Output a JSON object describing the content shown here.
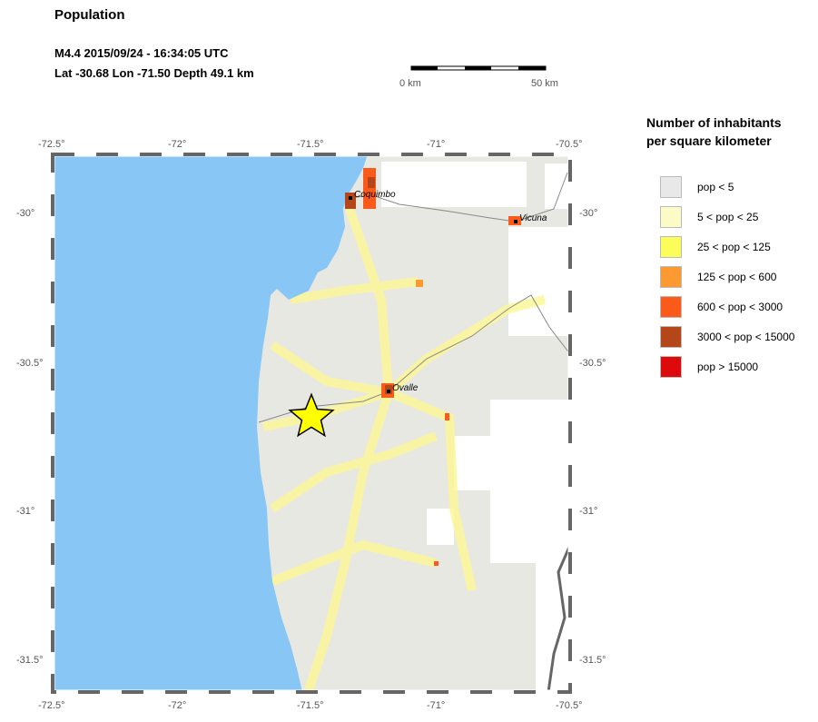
{
  "header": {
    "title": "Population",
    "event_line": "M4.4  2015/09/24 - 16:34:05 UTC",
    "location_line": "Lat -30.68    Lon -71.50     Depth  49.1 km"
  },
  "scale_bar": {
    "start_label": "0 km",
    "end_label": "50 km"
  },
  "map": {
    "lon_ticks": [
      "-72.5°",
      "-72°",
      "-71.5°",
      "-71°",
      "-70.5°"
    ],
    "lat_ticks": [
      "-30°",
      "-30.5°",
      "-31°",
      "-31.5°"
    ],
    "extent": {
      "lon": [
        -72.5,
        -70.5
      ],
      "lat": [
        -31.6,
        -29.8
      ]
    },
    "epicenter": {
      "lat": -30.68,
      "lon": -71.5,
      "marker": "star-icon",
      "color": "#ffff00"
    },
    "cities": [
      {
        "name": "Coquimbo"
      },
      {
        "name": "Vicuna"
      },
      {
        "name": "Ovalle"
      }
    ],
    "colors": {
      "sea": "#87c6f5",
      "land": "#e8e8e2"
    }
  },
  "legend": {
    "title_line1": "Number of inhabitants",
    "title_line2": "per square kilometer",
    "items": [
      {
        "label": "pop < 5",
        "color": "#e8e8e8"
      },
      {
        "label": "5 < pop < 25",
        "color": "#fcfbc8"
      },
      {
        "label": "25 < pop < 125",
        "color": "#fcfc5a"
      },
      {
        "label": "125 < pop < 600",
        "color": "#fc9a32"
      },
      {
        "label": "600 < pop < 3000",
        "color": "#fc5a1a"
      },
      {
        "label": "3000 < pop < 15000",
        "color": "#b4461a"
      },
      {
        "label": "pop > 15000",
        "color": "#dc0a0a"
      }
    ]
  }
}
